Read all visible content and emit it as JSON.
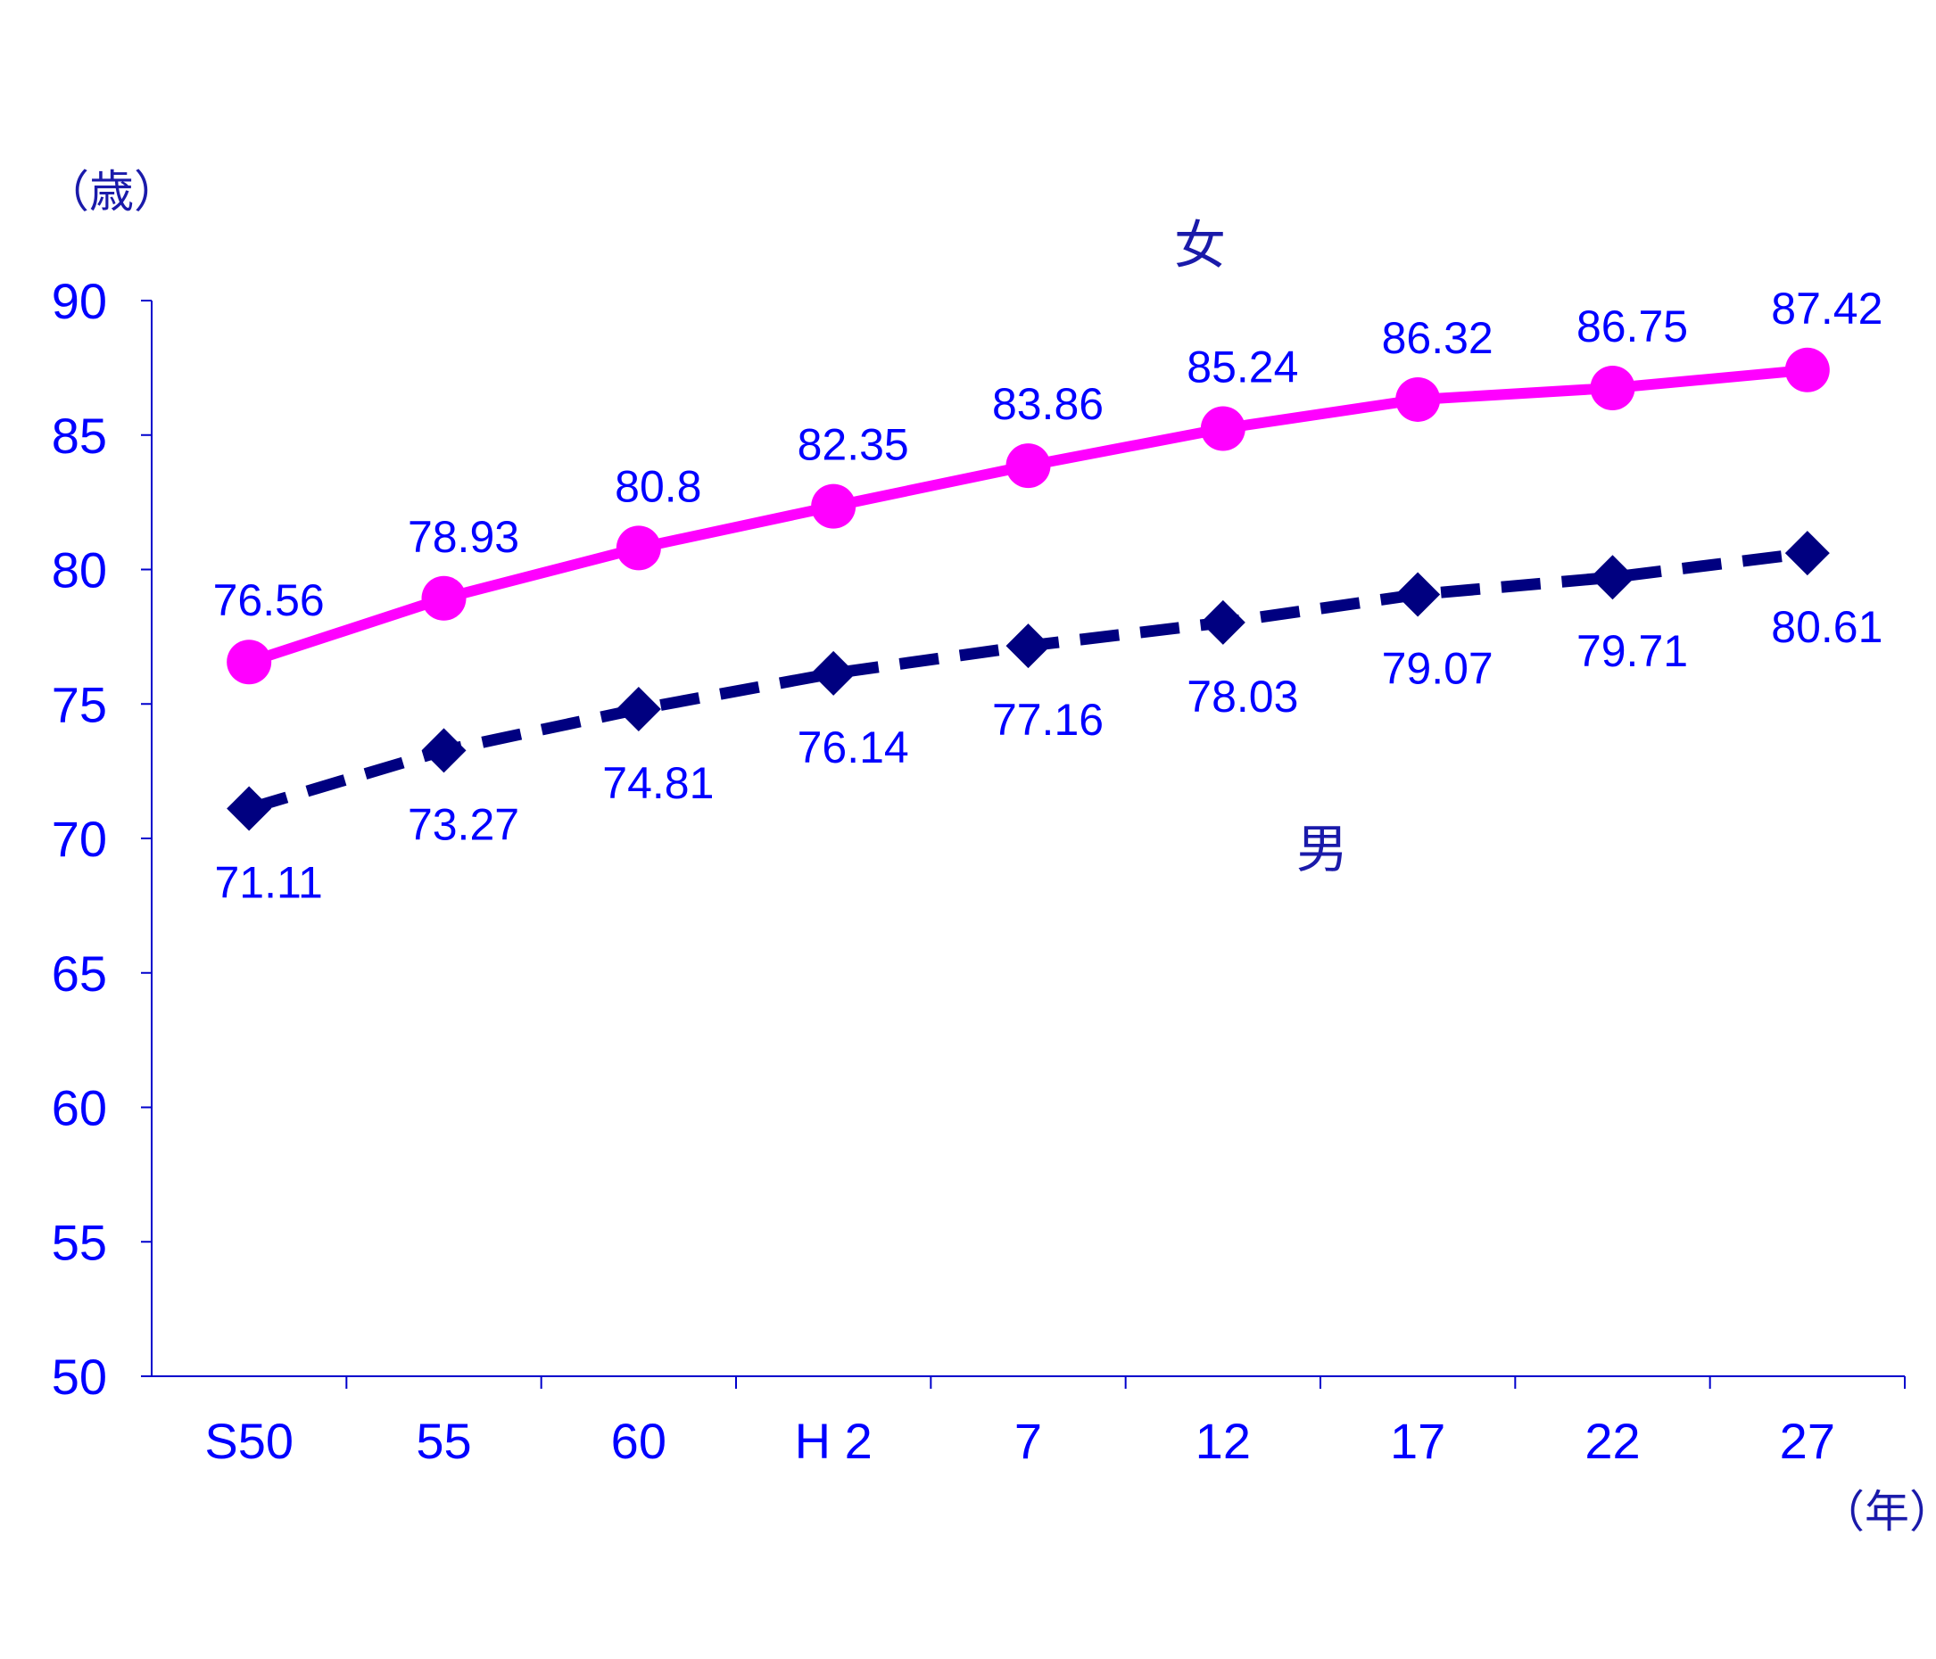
{
  "chart_data": {
    "type": "line",
    "title": "",
    "ylabel": "（歳）",
    "xlabel": "（年）",
    "categories": [
      "S50",
      "55",
      "60",
      "H 2",
      "7",
      "12",
      "17",
      "22",
      "27"
    ],
    "ylim": [
      50,
      90
    ],
    "yticks": [
      50,
      55,
      60,
      65,
      70,
      75,
      80,
      85,
      90
    ],
    "grid": false,
    "legend": "none",
    "series": [
      {
        "name": "女",
        "values": [
          76.56,
          78.93,
          80.8,
          82.35,
          83.86,
          85.24,
          86.32,
          86.75,
          87.42
        ],
        "labels": [
          "76.56",
          "78.93",
          "80.8",
          "82.35",
          "83.86",
          "85.24",
          "86.32",
          "86.75",
          "87.42"
        ],
        "color": "#ff00ff",
        "marker": "circle",
        "line_style": "solid",
        "label_position": "above"
      },
      {
        "name": "男",
        "values": [
          71.11,
          73.27,
          74.81,
          76.14,
          77.16,
          78.03,
          79.07,
          79.71,
          80.61
        ],
        "labels": [
          "71.11",
          "73.27",
          "74.81",
          "76.14",
          "77.16",
          "78.03",
          "79.07",
          "79.71",
          "80.61"
        ],
        "color": "#000080",
        "marker": "diamond",
        "line_style": "dashed",
        "label_position": "below"
      }
    ],
    "colors": {
      "axis": "#0000cc",
      "tick_text": "#0000ff",
      "data_label": "#0000ff",
      "axis_title": "#1a1aaa"
    }
  }
}
